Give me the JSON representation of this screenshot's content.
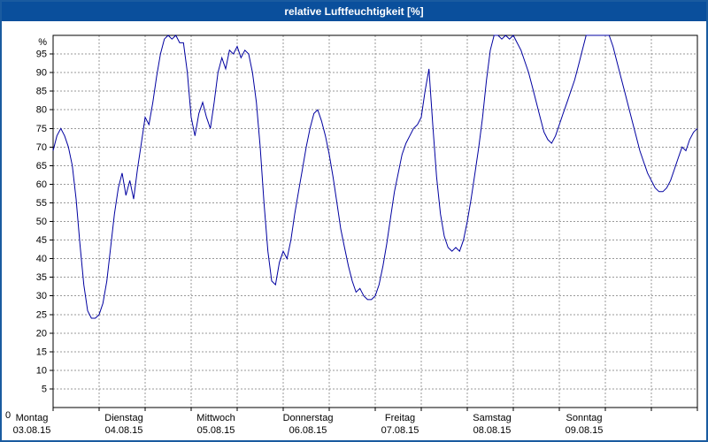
{
  "window": {
    "title": "relative Luftfeuchtigkeit [%]",
    "title_bar_color": "#0a4f9c",
    "border_color": "#1a5ba0"
  },
  "chart_data": {
    "type": "line",
    "title": "relative Luftfeuchtigkeit [%]",
    "ylabel": "%",
    "ylim": [
      0,
      100
    ],
    "y_ticks": [
      0,
      5,
      10,
      15,
      20,
      25,
      30,
      35,
      40,
      45,
      50,
      55,
      60,
      65,
      70,
      75,
      80,
      85,
      90,
      95
    ],
    "grid": true,
    "legend": false,
    "line_color": "#0000a0",
    "grid_color": "#999999",
    "x_range_hours": 168,
    "days": [
      {
        "name": "Montag",
        "date": "03.08.15"
      },
      {
        "name": "Dienstag",
        "date": "04.08.15"
      },
      {
        "name": "Mittwoch",
        "date": "05.08.15"
      },
      {
        "name": "Donnerstag",
        "date": "06.08.15"
      },
      {
        "name": "Freitag",
        "date": "07.08.15"
      },
      {
        "name": "Samstag",
        "date": "08.08.15"
      },
      {
        "name": "Sonntag",
        "date": "09.08.15"
      }
    ],
    "series": [
      {
        "name": "relative Luftfeuchtigkeit",
        "unit": "%",
        "interval_hours": 1,
        "values": [
          69,
          73,
          75,
          73,
          70,
          65,
          56,
          44,
          33,
          26,
          24,
          24,
          25,
          28,
          34,
          43,
          52,
          59,
          63,
          57,
          61,
          56,
          64,
          71,
          78,
          76,
          82,
          89,
          95,
          99,
          100,
          99,
          100,
          98,
          98,
          90,
          78,
          73,
          79,
          82,
          78,
          75,
          82,
          90,
          94,
          91,
          96,
          95,
          97,
          94,
          96,
          95,
          90,
          82,
          70,
          55,
          42,
          34,
          33,
          39,
          42,
          40,
          45,
          52,
          58,
          64,
          70,
          75,
          79,
          80,
          77,
          73,
          68,
          62,
          55,
          48,
          43,
          38,
          34,
          31,
          32,
          30,
          29,
          29,
          30,
          33,
          38,
          44,
          51,
          58,
          63,
          68,
          71,
          73,
          75,
          76,
          78,
          85,
          91,
          76,
          62,
          52,
          46,
          43,
          42,
          43,
          42,
          45,
          50,
          56,
          63,
          70,
          78,
          88,
          96,
          100,
          100,
          99,
          100,
          99,
          100,
          98,
          96,
          93,
          90,
          86,
          82,
          78,
          74,
          72,
          71,
          73,
          76,
          79,
          82,
          85,
          88,
          92,
          96,
          100,
          100,
          100,
          100,
          100,
          100,
          100,
          97,
          93,
          89,
          85,
          81,
          77,
          73,
          69,
          66,
          63,
          61,
          59,
          58,
          58,
          59,
          61,
          64,
          67,
          70,
          69,
          72,
          74,
          75
        ]
      }
    ]
  }
}
